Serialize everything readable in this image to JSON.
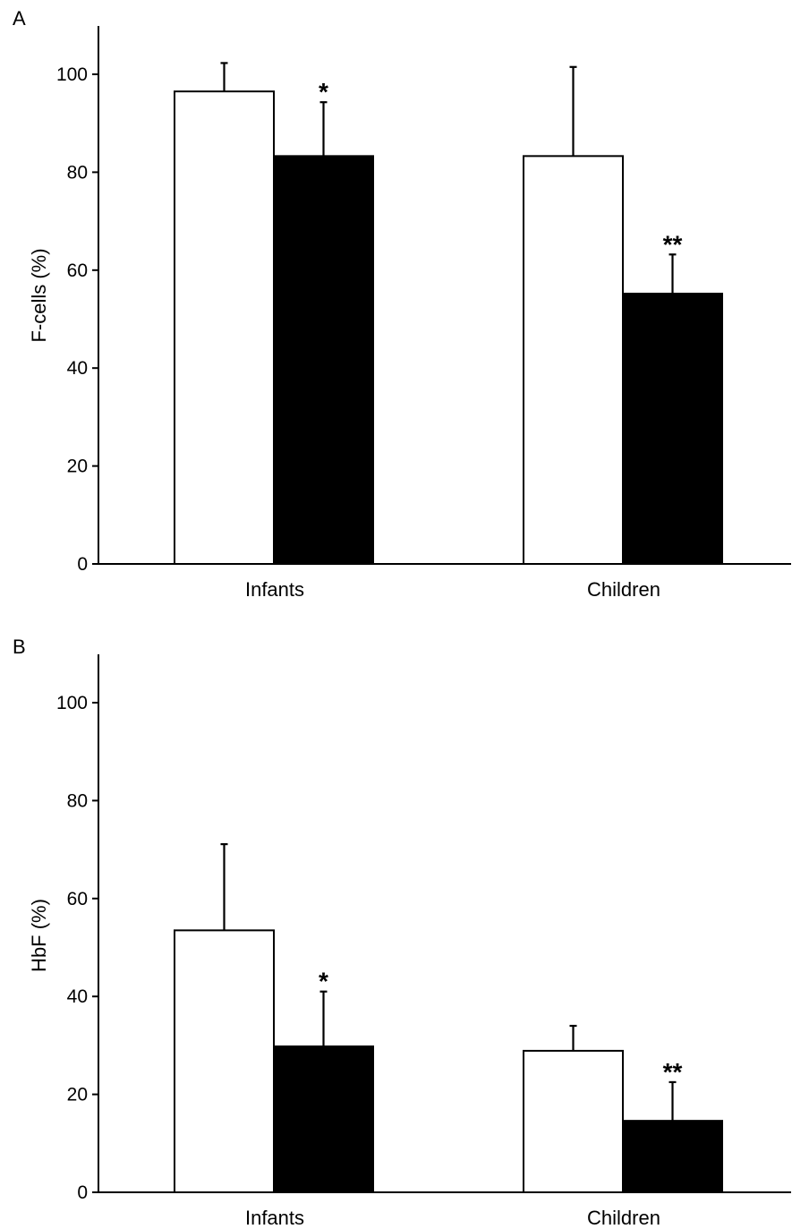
{
  "chart_data": [
    {
      "type": "bar",
      "panel_label": "A",
      "ylabel": "F-cells (%)",
      "xlabel": "",
      "categories": [
        "Infants",
        "Children"
      ],
      "ylim": [
        0,
        110
      ],
      "yticks": [
        0,
        20,
        40,
        60,
        80,
        100
      ],
      "grid": false,
      "series": [
        {
          "color": "#ffffff",
          "values": [
            96.5,
            83.3
          ],
          "errors": [
            5.8,
            18.2
          ],
          "annotations": [
            "",
            ""
          ]
        },
        {
          "color": "#000000",
          "values": [
            83.3,
            55.2
          ],
          "errors": [
            11.0,
            8.0
          ],
          "annotations": [
            "*",
            "**"
          ]
        }
      ]
    },
    {
      "type": "bar",
      "panel_label": "B",
      "ylabel": "HbF (%)",
      "xlabel": "",
      "categories": [
        "Infants",
        "Children"
      ],
      "ylim": [
        0,
        110
      ],
      "yticks": [
        0,
        20,
        40,
        60,
        80,
        100
      ],
      "grid": false,
      "series": [
        {
          "color": "#ffffff",
          "values": [
            53.5,
            28.9
          ],
          "errors": [
            17.6,
            5.1
          ],
          "annotations": [
            "",
            ""
          ]
        },
        {
          "color": "#000000",
          "values": [
            29.8,
            14.6
          ],
          "errors": [
            11.2,
            7.9
          ],
          "annotations": [
            "*",
            "**"
          ]
        }
      ]
    }
  ]
}
